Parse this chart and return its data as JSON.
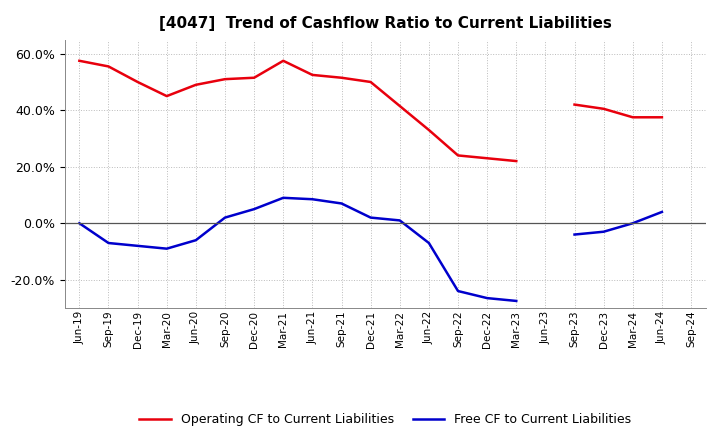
{
  "title": "[4047]  Trend of Cashflow Ratio to Current Liabilities",
  "labels": [
    "Jun-19",
    "Sep-19",
    "Dec-19",
    "Mar-20",
    "Jun-20",
    "Sep-20",
    "Dec-20",
    "Mar-21",
    "Jun-21",
    "Sep-21",
    "Dec-21",
    "Mar-22",
    "Jun-22",
    "Sep-22",
    "Dec-22",
    "Mar-23",
    "Jun-23",
    "Sep-23",
    "Dec-23",
    "Mar-24",
    "Jun-24",
    "Sep-24"
  ],
  "operating_color": "#e8000d",
  "free_color": "#0000cc",
  "background_color": "#ffffff",
  "grid_color": "#bbbbbb",
  "legend_op": "Operating CF to Current Liabilities",
  "legend_free": "Free CF to Current Liabilities",
  "ylim": [
    -0.3,
    0.65
  ],
  "yticks": [
    -0.2,
    0.0,
    0.2,
    0.4,
    0.6
  ],
  "operating_segments": [
    {
      "x": [
        0,
        1,
        2,
        3,
        4,
        5,
        6,
        7,
        8,
        9,
        10,
        11,
        12,
        13,
        14,
        15
      ],
      "y": [
        0.575,
        0.555,
        0.5,
        0.45,
        0.49,
        0.51,
        0.515,
        0.575,
        0.525,
        0.515,
        0.5,
        0.415,
        0.33,
        0.24,
        0.23,
        0.22
      ]
    },
    {
      "x": [
        17,
        18,
        19,
        20
      ],
      "y": [
        0.42,
        0.405,
        0.375,
        0.375
      ]
    }
  ],
  "free_segments": [
    {
      "x": [
        0,
        1,
        2,
        3,
        4,
        5,
        6,
        7,
        8,
        9,
        10,
        11,
        12,
        13,
        14,
        15
      ],
      "y": [
        0.0,
        -0.07,
        -0.08,
        -0.09,
        -0.06,
        0.02,
        0.05,
        0.09,
        0.085,
        0.07,
        0.02,
        0.01,
        -0.07,
        -0.24,
        -0.265,
        -0.275
      ]
    },
    {
      "x": [
        17,
        18,
        19,
        20
      ],
      "y": [
        -0.04,
        -0.03,
        0.0,
        0.04
      ]
    }
  ]
}
